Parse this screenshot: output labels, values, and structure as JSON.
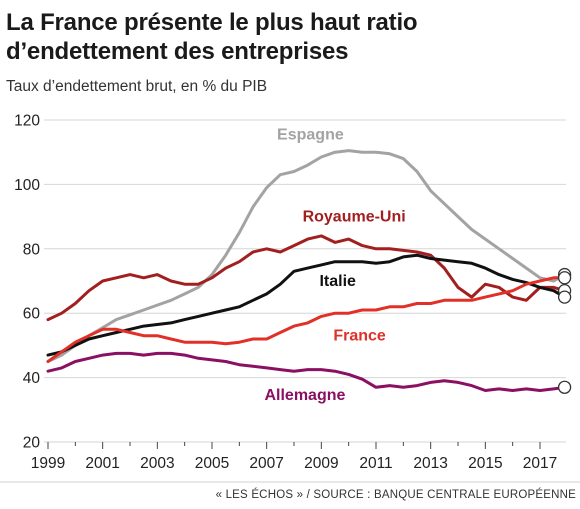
{
  "header": {
    "title_line1": "La France présente le plus haut ratio",
    "title_line2": "d’endettement des entreprises",
    "subtitle": "Taux d’endettement brut, en % du PIB"
  },
  "footer": {
    "source": "« LES ÉCHOS » / SOURCE : BANQUE CENTRALE EUROPÉENNE"
  },
  "chart_data": {
    "type": "line",
    "title": "La France présente le plus haut ratio d’endettement des entreprises",
    "subtitle": "Taux d’endettement brut, en % du PIB",
    "xlabel": "",
    "ylabel": "",
    "xlim": [
      1999,
      2017.9
    ],
    "ylim": [
      20,
      120
    ],
    "x_ticks": [
      1999,
      2001,
      2003,
      2005,
      2007,
      2009,
      2011,
      2013,
      2015,
      2017
    ],
    "y_ticks": [
      20,
      40,
      60,
      80,
      100,
      120
    ],
    "grid": "horizontal",
    "legend": "none",
    "end_markers": "hollow circles at last data points",
    "series": [
      {
        "name": "Espagne",
        "color": "#a3a3a3",
        "points": [
          [
            1999,
            45
          ],
          [
            1999.5,
            47
          ],
          [
            2000,
            50
          ],
          [
            2000.5,
            53
          ],
          [
            2001,
            55.5
          ],
          [
            2001.5,
            58
          ],
          [
            2002,
            59.5
          ],
          [
            2002.5,
            61
          ],
          [
            2003,
            62.5
          ],
          [
            2003.5,
            64
          ],
          [
            2004,
            66
          ],
          [
            2004.5,
            68
          ],
          [
            2005,
            72
          ],
          [
            2005.5,
            78
          ],
          [
            2006,
            85
          ],
          [
            2006.5,
            93
          ],
          [
            2007,
            99
          ],
          [
            2007.5,
            103
          ],
          [
            2008,
            104
          ],
          [
            2008.5,
            106
          ],
          [
            2009,
            108.5
          ],
          [
            2009.5,
            110
          ],
          [
            2010,
            110.5
          ],
          [
            2010.5,
            110
          ],
          [
            2011,
            110
          ],
          [
            2011.5,
            109.5
          ],
          [
            2012,
            108
          ],
          [
            2012.5,
            104
          ],
          [
            2013,
            98
          ],
          [
            2013.5,
            94
          ],
          [
            2014,
            90
          ],
          [
            2014.5,
            86
          ],
          [
            2015,
            83
          ],
          [
            2015.5,
            80
          ],
          [
            2016,
            77
          ],
          [
            2016.5,
            74
          ],
          [
            2017,
            71
          ],
          [
            2017.5,
            70
          ],
          [
            2017.9,
            72
          ]
        ]
      },
      {
        "name": "Royaume-Uni",
        "color": "#a31e1e",
        "points": [
          [
            1999,
            58
          ],
          [
            1999.5,
            60
          ],
          [
            2000,
            63
          ],
          [
            2000.5,
            67
          ],
          [
            2001,
            70
          ],
          [
            2001.5,
            71
          ],
          [
            2002,
            72
          ],
          [
            2002.5,
            71
          ],
          [
            2003,
            72
          ],
          [
            2003.5,
            70
          ],
          [
            2004,
            69
          ],
          [
            2004.5,
            69
          ],
          [
            2005,
            71
          ],
          [
            2005.5,
            74
          ],
          [
            2006,
            76
          ],
          [
            2006.5,
            79
          ],
          [
            2007,
            80
          ],
          [
            2007.5,
            79
          ],
          [
            2008,
            81
          ],
          [
            2008.5,
            83
          ],
          [
            2009,
            84
          ],
          [
            2009.5,
            82
          ],
          [
            2010,
            83
          ],
          [
            2010.5,
            81
          ],
          [
            2011,
            80
          ],
          [
            2011.5,
            80
          ],
          [
            2012,
            79.5
          ],
          [
            2012.5,
            79
          ],
          [
            2013,
            78
          ],
          [
            2013.5,
            74
          ],
          [
            2014,
            68
          ],
          [
            2014.5,
            65
          ],
          [
            2015,
            69
          ],
          [
            2015.5,
            68
          ],
          [
            2016,
            65
          ],
          [
            2016.5,
            64
          ],
          [
            2017,
            68
          ],
          [
            2017.5,
            68
          ],
          [
            2017.9,
            67
          ]
        ]
      },
      {
        "name": "Italie",
        "color": "#111111",
        "points": [
          [
            1999,
            47
          ],
          [
            1999.5,
            48
          ],
          [
            2000,
            50
          ],
          [
            2000.5,
            52
          ],
          [
            2001,
            53
          ],
          [
            2001.5,
            54
          ],
          [
            2002,
            55
          ],
          [
            2002.5,
            56
          ],
          [
            2003,
            56.5
          ],
          [
            2003.5,
            57
          ],
          [
            2004,
            58
          ],
          [
            2004.5,
            59
          ],
          [
            2005,
            60
          ],
          [
            2005.5,
            61
          ],
          [
            2006,
            62
          ],
          [
            2006.5,
            64
          ],
          [
            2007,
            66
          ],
          [
            2007.5,
            69
          ],
          [
            2008,
            73
          ],
          [
            2008.5,
            74
          ],
          [
            2009,
            75
          ],
          [
            2009.5,
            76
          ],
          [
            2010,
            76
          ],
          [
            2010.5,
            76
          ],
          [
            2011,
            75.5
          ],
          [
            2011.5,
            76
          ],
          [
            2012,
            77.5
          ],
          [
            2012.5,
            78
          ],
          [
            2013,
            77
          ],
          [
            2013.5,
            76.5
          ],
          [
            2014,
            76
          ],
          [
            2014.5,
            75.5
          ],
          [
            2015,
            74
          ],
          [
            2015.5,
            72
          ],
          [
            2016,
            70.5
          ],
          [
            2016.5,
            69.5
          ],
          [
            2017,
            68
          ],
          [
            2017.5,
            67
          ],
          [
            2017.9,
            65
          ]
        ]
      },
      {
        "name": "France",
        "color": "#e03028",
        "points": [
          [
            1999,
            45
          ],
          [
            1999.5,
            48
          ],
          [
            2000,
            51
          ],
          [
            2000.5,
            53
          ],
          [
            2001,
            55
          ],
          [
            2001.5,
            55
          ],
          [
            2002,
            54
          ],
          [
            2002.5,
            53
          ],
          [
            2003,
            53
          ],
          [
            2003.5,
            52
          ],
          [
            2004,
            51
          ],
          [
            2004.5,
            51
          ],
          [
            2005,
            51
          ],
          [
            2005.5,
            50.5
          ],
          [
            2006,
            51
          ],
          [
            2006.5,
            52
          ],
          [
            2007,
            52
          ],
          [
            2007.5,
            54
          ],
          [
            2008,
            56
          ],
          [
            2008.5,
            57
          ],
          [
            2009,
            59
          ],
          [
            2009.5,
            60
          ],
          [
            2010,
            60
          ],
          [
            2010.5,
            61
          ],
          [
            2011,
            61
          ],
          [
            2011.5,
            62
          ],
          [
            2012,
            62
          ],
          [
            2012.5,
            63
          ],
          [
            2013,
            63
          ],
          [
            2013.5,
            64
          ],
          [
            2014,
            64
          ],
          [
            2014.5,
            64
          ],
          [
            2015,
            65
          ],
          [
            2015.5,
            66
          ],
          [
            2016,
            67
          ],
          [
            2016.5,
            69
          ],
          [
            2017,
            70
          ],
          [
            2017.5,
            71
          ],
          [
            2017.9,
            71
          ]
        ]
      },
      {
        "name": "Allemagne",
        "color": "#8b0f62",
        "points": [
          [
            1999,
            42
          ],
          [
            1999.5,
            43
          ],
          [
            2000,
            45
          ],
          [
            2000.5,
            46
          ],
          [
            2001,
            47
          ],
          [
            2001.5,
            47.5
          ],
          [
            2002,
            47.5
          ],
          [
            2002.5,
            47
          ],
          [
            2003,
            47.5
          ],
          [
            2003.5,
            47.5
          ],
          [
            2004,
            47
          ],
          [
            2004.5,
            46
          ],
          [
            2005,
            45.5
          ],
          [
            2005.5,
            45
          ],
          [
            2006,
            44
          ],
          [
            2006.5,
            43.5
          ],
          [
            2007,
            43
          ],
          [
            2007.5,
            42.5
          ],
          [
            2008,
            42
          ],
          [
            2008.5,
            42.5
          ],
          [
            2009,
            42.5
          ],
          [
            2009.5,
            42
          ],
          [
            2010,
            41
          ],
          [
            2010.5,
            39.5
          ],
          [
            2011,
            37
          ],
          [
            2011.5,
            37.5
          ],
          [
            2012,
            37
          ],
          [
            2012.5,
            37.5
          ],
          [
            2013,
            38.5
          ],
          [
            2013.5,
            39
          ],
          [
            2014,
            38.5
          ],
          [
            2014.5,
            37.5
          ],
          [
            2015,
            36
          ],
          [
            2015.5,
            36.5
          ],
          [
            2016,
            36
          ],
          [
            2016.5,
            36.5
          ],
          [
            2017,
            36
          ],
          [
            2017.5,
            36.5
          ],
          [
            2017.9,
            37
          ]
        ]
      }
    ],
    "annotations": [
      {
        "text": "Espagne",
        "series": "Espagne",
        "x": 2008.6,
        "y": 114
      },
      {
        "text": "Royaume-Uni",
        "series": "Royaume-Uni",
        "x": 2010.2,
        "y": 88.5
      },
      {
        "text": "Italie",
        "series": "Italie",
        "x": 2009.6,
        "y": 68.5
      },
      {
        "text": "France",
        "series": "France",
        "x": 2010.4,
        "y": 51.5
      },
      {
        "text": "Allemagne",
        "series": "Allemagne",
        "x": 2008.4,
        "y": 33
      }
    ]
  }
}
